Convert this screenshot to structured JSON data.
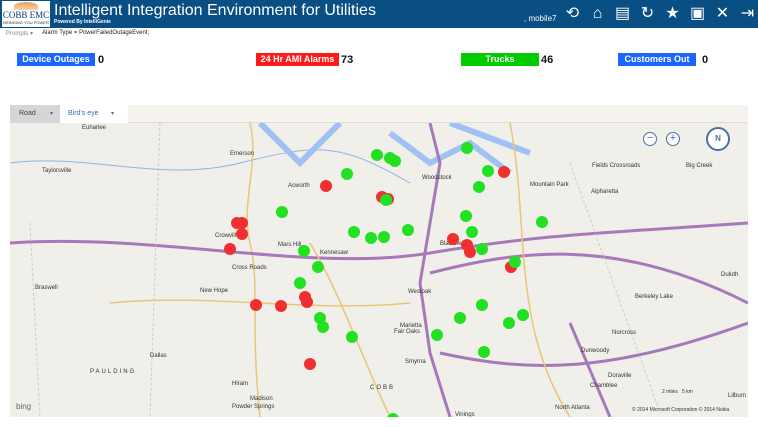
{
  "header": {
    "logo_text": "COBB EMC",
    "logo_tagline": "BRINGING YOU POWER",
    "title": "Intelligent Integration Environment for Utilities",
    "subtitle": "Powered By IntelliGenie",
    "user": ", mobile7",
    "icons": [
      "history-icon",
      "home-icon",
      "report-icon",
      "refresh-icon",
      "favorite-add-icon",
      "dashboard-icon",
      "tools-icon",
      "logout-icon"
    ]
  },
  "filter": {
    "prompts_label": "Prompts ▾",
    "alarm_type": "Alarm Type = PowerFailedOutageEvent;"
  },
  "kpis": [
    {
      "label": "Device Outages",
      "value": "0",
      "color": "#1a66ff"
    },
    {
      "label": "24 Hr AMI Alarms",
      "value": "73",
      "color": "#ff1a1a"
    },
    {
      "label": "Trucks",
      "value": "46",
      "color": "#00cc00"
    },
    {
      "label": "Customers Out",
      "value": "0",
      "color": "#1a66ff"
    }
  ],
  "map": {
    "road_label": "Road",
    "birds_eye_label": "Bird's eye",
    "zoom_out": "−",
    "zoom_in": "+",
    "compass": "N",
    "bing": "bing",
    "copyright": "© 2014 Microsoft Corporation   © 2014 Nokia",
    "scale_miles": "2 miles",
    "scale_km": "5 km",
    "places": [
      "Euharlee",
      "Emerson",
      "Taylorsville",
      "Acworth",
      "Woodstock",
      "Fields Crossroads",
      "Big Creek",
      "Mountain Park",
      "Alpharetta",
      "Crowville",
      "Mars Hill",
      "Kennesaw",
      "Blackwells",
      "Cross Roads",
      "Braswell",
      "New Hope",
      "Westoak",
      "Berkeley Lake",
      "Duluth",
      "Marietta",
      "Norcross",
      "Dallas",
      "Fair Oaks",
      "Dunwoody",
      "PAULDING",
      "Hiram",
      "Smyrna",
      "COBB",
      "Doraville",
      "Chamblee",
      "Madison",
      "Powder Springs",
      "Vinings",
      "North Atlanta",
      "Lilburn"
    ],
    "marker_colors": {
      "alarm": "#f03030",
      "truck": "#22e022"
    }
  }
}
